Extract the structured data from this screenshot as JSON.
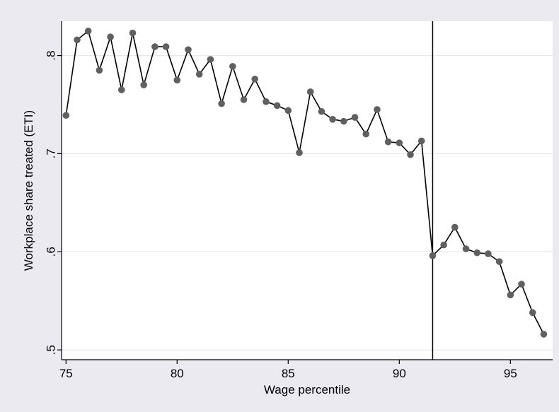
{
  "chart_data": {
    "type": "line",
    "title": "",
    "xlabel": "Wage percentile",
    "ylabel": "Workplace share treated (ETI)",
    "xlim": [
      74.8,
      96.9
    ],
    "ylim": [
      0.49,
      0.835
    ],
    "x_ticks": [
      75,
      80,
      85,
      90,
      95
    ],
    "x_tick_labels": [
      "75",
      "80",
      "85",
      "90",
      "95"
    ],
    "y_ticks": [
      0.5,
      0.6,
      0.7,
      0.8
    ],
    "y_tick_labels": [
      ".5",
      ".6",
      ".7",
      ".8"
    ],
    "grid": "horizontal",
    "vertical_line_x": 91.5,
    "series": [
      {
        "x": [
          75,
          75.5,
          76,
          76.5,
          77,
          77.5,
          78,
          78.5,
          79,
          79.5,
          80,
          80.5,
          81,
          81.5,
          82,
          82.5,
          83,
          83.5,
          84,
          84.5,
          85,
          85.5,
          86,
          86.5,
          87,
          87.5,
          88,
          88.5,
          89,
          89.5,
          90,
          90.5,
          91,
          91.5,
          92,
          92.5,
          93,
          93.5,
          94,
          94.5,
          95,
          95.5,
          96,
          96.5
        ],
        "y": [
          0.739,
          0.816,
          0.825,
          0.785,
          0.819,
          0.765,
          0.823,
          0.77,
          0.809,
          0.809,
          0.775,
          0.806,
          0.781,
          0.796,
          0.751,
          0.789,
          0.755,
          0.776,
          0.753,
          0.749,
          0.744,
          0.701,
          0.763,
          0.743,
          0.735,
          0.733,
          0.737,
          0.72,
          0.745,
          0.712,
          0.711,
          0.699,
          0.713,
          0.596,
          0.607,
          0.625,
          0.603,
          0.599,
          0.598,
          0.59,
          0.556,
          0.567,
          0.538,
          0.516
        ]
      }
    ],
    "colors": {
      "background": "#eaeaf0",
      "plot_background": "#ffffff",
      "gridline": "#e8e8e8",
      "line": "#000000",
      "marker": "#606060",
      "vertical_line": "#000000"
    }
  }
}
